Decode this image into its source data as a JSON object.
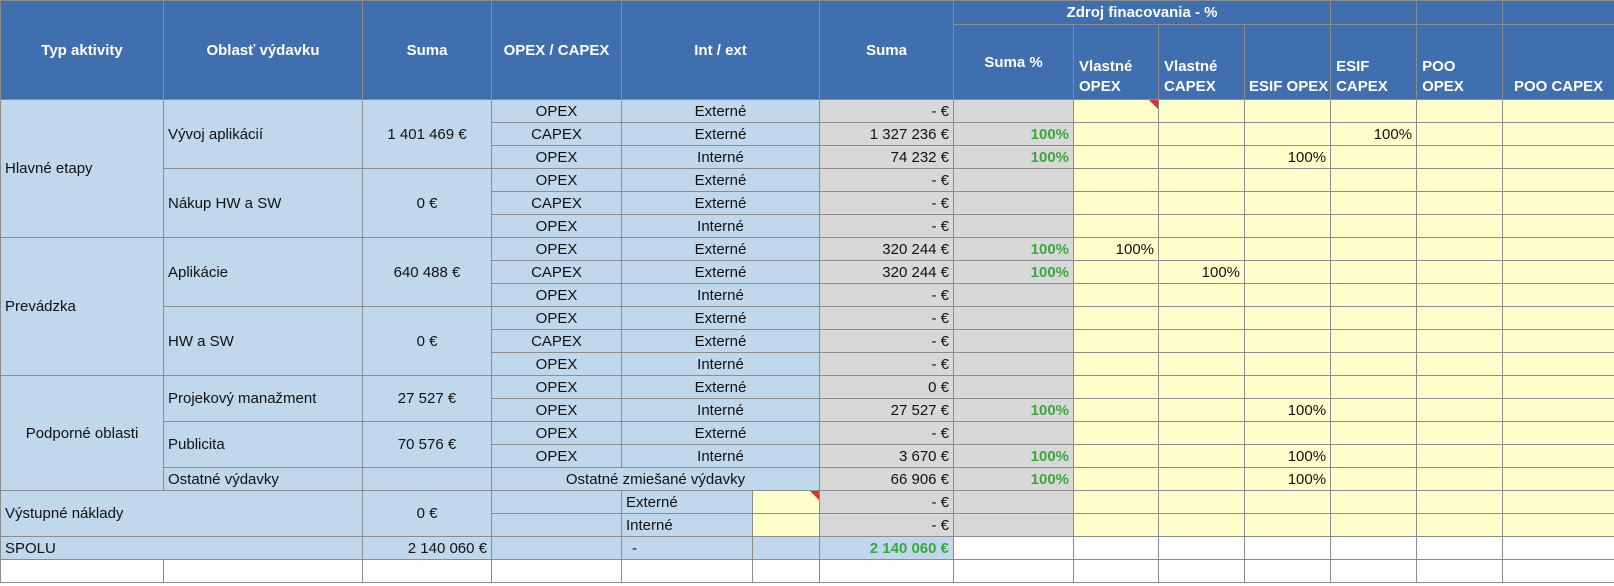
{
  "header": {
    "typ_aktivity": "Typ aktivity",
    "oblast": "Oblasť výdavku",
    "suma": "Suma",
    "opex_capex": "OPEX / CAPEX",
    "int_ext": "Int / ext",
    "suma2": "Suma",
    "zdroj": "Zdroj finacovania - %",
    "suma_pct": "Suma %",
    "vlastne_opex_1": "Vlastné",
    "vlastne_opex_2": "OPEX",
    "vlastne_capex_1": "Vlastné",
    "vlastne_capex_2": "CAPEX",
    "esif_opex": "ESIF OPEX",
    "esif_capex_1": "ESIF",
    "esif_capex_2": "CAPEX",
    "poo_opex_1": "POO",
    "poo_opex_2": "OPEX",
    "poo_capex": "POO CAPEX"
  },
  "groups": {
    "hlavne": "Hlavné etapy",
    "prevadzka": "Prevádzka",
    "podporne": "Podporné oblasti",
    "vystupne": "Výstupné náklady",
    "spolu": "SPOLU"
  },
  "areas": {
    "vyvoj": {
      "name": "Vývoj aplikácií",
      "suma": "1 401 469 €"
    },
    "nakup": {
      "name": "Nákup HW a SW",
      "suma": "0 €"
    },
    "aplikacie": {
      "name": "Aplikácie",
      "suma": "640 488 €"
    },
    "hwsw": {
      "name": "HW a SW",
      "suma": "0 €"
    },
    "projekt": {
      "name": "Projekový manažment",
      "suma": "27 527 €"
    },
    "publicita": {
      "name": "Publicita",
      "suma": "70 576 €"
    },
    "ostatne": {
      "name": "Ostatné výdavky",
      "label": "Ostatné zmiešané výdavky",
      "suma": "66 906 €",
      "pct": "100%",
      "esif_opex": "100%"
    },
    "vystupne_suma": "0 €",
    "spolu_suma": "2 140 060 €",
    "spolu_dash": "-",
    "spolu_total": "2 140 060 €"
  },
  "rows": [
    {
      "type": "OPEX",
      "ext": "Externé",
      "suma": "- €",
      "pct": "",
      "v_opex": "",
      "v_capex": "",
      "e_opex": "",
      "e_capex": "",
      "p_opex": "",
      "p_capex": ""
    },
    {
      "type": "CAPEX",
      "ext": "Externé",
      "suma": "1 327 236 €",
      "pct": "100%",
      "v_opex": "",
      "v_capex": "",
      "e_opex": "",
      "e_capex": "100%",
      "p_opex": "",
      "p_capex": ""
    },
    {
      "type": "OPEX",
      "ext": "Interné",
      "suma": "74 232 €",
      "pct": "100%",
      "v_opex": "",
      "v_capex": "",
      "e_opex": "100%",
      "e_capex": "",
      "p_opex": "",
      "p_capex": ""
    },
    {
      "type": "OPEX",
      "ext": "Externé",
      "suma": "- €",
      "pct": "",
      "v_opex": "",
      "v_capex": "",
      "e_opex": "",
      "e_capex": "",
      "p_opex": "",
      "p_capex": ""
    },
    {
      "type": "CAPEX",
      "ext": "Externé",
      "suma": "- €",
      "pct": "",
      "v_opex": "",
      "v_capex": "",
      "e_opex": "",
      "e_capex": "",
      "p_opex": "",
      "p_capex": ""
    },
    {
      "type": "OPEX",
      "ext": "Interné",
      "suma": "- €",
      "pct": "",
      "v_opex": "",
      "v_capex": "",
      "e_opex": "",
      "e_capex": "",
      "p_opex": "",
      "p_capex": ""
    },
    {
      "type": "OPEX",
      "ext": "Externé",
      "suma": "320 244 €",
      "pct": "100%",
      "v_opex": "100%",
      "v_capex": "",
      "e_opex": "",
      "e_capex": "",
      "p_opex": "",
      "p_capex": ""
    },
    {
      "type": "CAPEX",
      "ext": "Externé",
      "suma": "320 244 €",
      "pct": "100%",
      "v_opex": "",
      "v_capex": "100%",
      "e_opex": "",
      "e_capex": "",
      "p_opex": "",
      "p_capex": ""
    },
    {
      "type": "OPEX",
      "ext": "Interné",
      "suma": "- €",
      "pct": "",
      "v_opex": "",
      "v_capex": "",
      "e_opex": "",
      "e_capex": "",
      "p_opex": "",
      "p_capex": ""
    },
    {
      "type": "OPEX",
      "ext": "Externé",
      "suma": "- €",
      "pct": "",
      "v_opex": "",
      "v_capex": "",
      "e_opex": "",
      "e_capex": "",
      "p_opex": "",
      "p_capex": ""
    },
    {
      "type": "CAPEX",
      "ext": "Externé",
      "suma": "- €",
      "pct": "",
      "v_opex": "",
      "v_capex": "",
      "e_opex": "",
      "e_capex": "",
      "p_opex": "",
      "p_capex": ""
    },
    {
      "type": "OPEX",
      "ext": "Interné",
      "suma": "- €",
      "pct": "",
      "v_opex": "",
      "v_capex": "",
      "e_opex": "",
      "e_capex": "",
      "p_opex": "",
      "p_capex": ""
    },
    {
      "type": "OPEX",
      "ext": "Externé",
      "suma": "0 €",
      "pct": "",
      "v_opex": "",
      "v_capex": "",
      "e_opex": "",
      "e_capex": "",
      "p_opex": "",
      "p_capex": ""
    },
    {
      "type": "OPEX",
      "ext": "Interné",
      "suma": "27 527 €",
      "pct": "100%",
      "v_opex": "",
      "v_capex": "",
      "e_opex": "100%",
      "e_capex": "",
      "p_opex": "",
      "p_capex": ""
    },
    {
      "type": "OPEX",
      "ext": "Externé",
      "suma": "- €",
      "pct": "",
      "v_opex": "",
      "v_capex": "",
      "e_opex": "",
      "e_capex": "",
      "p_opex": "",
      "p_capex": ""
    },
    {
      "type": "OPEX",
      "ext": "Interné",
      "suma": "3 670 €",
      "pct": "100%",
      "v_opex": "",
      "v_capex": "",
      "e_opex": "100%",
      "e_capex": "",
      "p_opex": "",
      "p_capex": ""
    }
  ],
  "vystupne_rows": [
    {
      "ext": "Externé",
      "suma": "- €"
    },
    {
      "ext": "Interné",
      "suma": "- €"
    }
  ]
}
